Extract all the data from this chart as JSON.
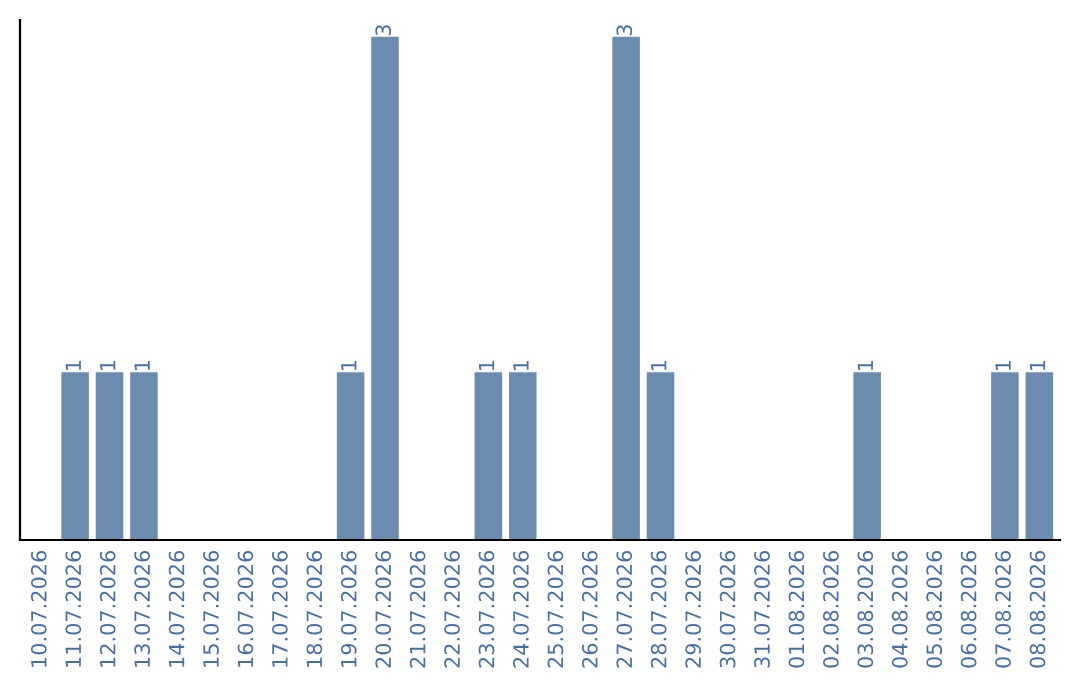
{
  "chart_data": {
    "type": "bar",
    "categories": [
      "10.07.2026",
      "11.07.2026",
      "12.07.2026",
      "13.07.2026",
      "14.07.2026",
      "15.07.2026",
      "16.07.2026",
      "17.07.2026",
      "18.07.2026",
      "19.07.2026",
      "20.07.2026",
      "21.07.2026",
      "22.07.2026",
      "23.07.2026",
      "24.07.2026",
      "25.07.2026",
      "26.07.2026",
      "27.07.2026",
      "28.07.2026",
      "29.07.2026",
      "30.07.2026",
      "31.07.2026",
      "01.08.2026",
      "02.08.2026",
      "03.08.2026",
      "04.08.2026",
      "05.08.2026",
      "06.08.2026",
      "07.08.2026",
      "08.08.2026"
    ],
    "values": [
      0,
      1,
      1,
      1,
      0,
      0,
      0,
      0,
      0,
      1,
      3,
      0,
      0,
      1,
      1,
      0,
      0,
      3,
      1,
      0,
      0,
      0,
      0,
      0,
      1,
      0,
      0,
      0,
      1,
      1
    ],
    "value_labels": [
      null,
      "1",
      "1",
      "1",
      null,
      null,
      null,
      null,
      null,
      "1",
      "3",
      null,
      null,
      "1",
      "1",
      null,
      null,
      "3",
      "1",
      null,
      null,
      null,
      null,
      null,
      "1",
      null,
      null,
      null,
      "1",
      "1"
    ],
    "color": "#6b8cae",
    "ylim": [
      0,
      3.1
    ],
    "tick_labels": "x",
    "grid": false,
    "legend": false
  }
}
